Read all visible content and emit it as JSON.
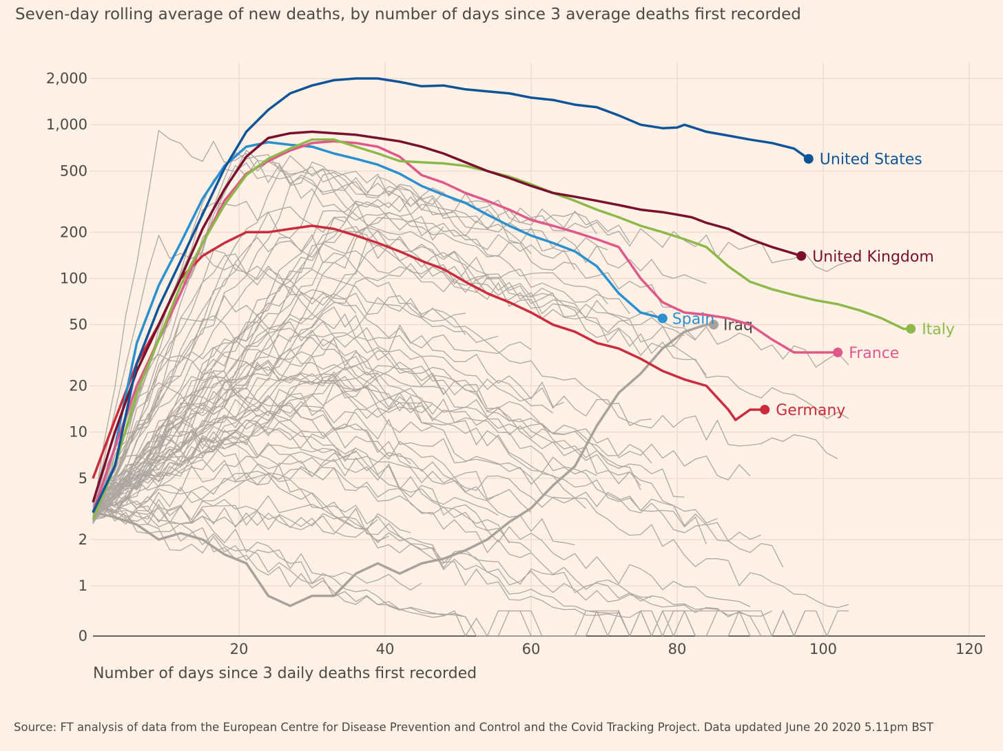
{
  "chart_data": {
    "type": "line",
    "title": "Seven-day rolling average of new deaths, by number of days since 3 average deaths first recorded",
    "xlabel": "Number of days since 3 daily deaths first recorded",
    "ylabel": "",
    "source": "Source: FT analysis of data from the European Centre for Disease Prevention and Control and the Covid Tracking Project. Data updated June 20 2020 5.11pm BST",
    "x_ticks": [
      "20",
      "40",
      "60",
      "80",
      "100",
      "120"
    ],
    "y_ticks": [
      "0",
      "1",
      "2",
      "5",
      "10",
      "20",
      "50",
      "100",
      "200",
      "500",
      "1,000",
      "2,000"
    ],
    "y_scale": "log (symlog near zero)",
    "xlim": [
      0,
      122
    ],
    "ylim": [
      0,
      2500
    ],
    "grid": true,
    "colors": {
      "background": "#fff1e5",
      "grid": "#e5d9cf",
      "other_countries": "#aaa39d",
      "United States": "#0f5499",
      "United Kingdom": "#7a0f2e",
      "Italy": "#8db94a",
      "France": "#e0588a",
      "Spain": "#2a90cf",
      "Germany": "#cc2b3d",
      "Iraq": "#a8a29c"
    },
    "series": [
      {
        "name": "United States",
        "x": [
          0,
          3,
          6,
          9,
          12,
          15,
          18,
          21,
          24,
          27,
          30,
          33,
          36,
          39,
          42,
          45,
          48,
          51,
          54,
          57,
          60,
          63,
          66,
          69,
          72,
          75,
          78,
          80,
          81,
          84,
          87,
          90,
          93,
          96,
          98
        ],
        "values": [
          3,
          6,
          28,
          65,
          130,
          260,
          520,
          900,
          1250,
          1600,
          1800,
          1950,
          2000,
          2000,
          1900,
          1780,
          1800,
          1700,
          1650,
          1600,
          1500,
          1450,
          1350,
          1300,
          1150,
          1000,
          950,
          960,
          1000,
          900,
          850,
          800,
          760,
          700,
          600
        ]
      },
      {
        "name": "United Kingdom",
        "x": [
          0,
          3,
          6,
          9,
          12,
          15,
          18,
          21,
          24,
          27,
          30,
          33,
          36,
          39,
          42,
          45,
          48,
          51,
          54,
          57,
          60,
          63,
          66,
          69,
          72,
          75,
          78,
          80,
          82,
          84,
          87,
          90,
          93,
          96,
          97
        ],
        "values": [
          3.5,
          10,
          25,
          50,
          100,
          210,
          380,
          620,
          820,
          880,
          900,
          880,
          860,
          820,
          780,
          720,
          650,
          570,
          500,
          450,
          400,
          360,
          340,
          320,
          300,
          280,
          270,
          260,
          250,
          230,
          210,
          180,
          160,
          145,
          140
        ]
      },
      {
        "name": "Italy",
        "x": [
          0,
          3,
          6,
          9,
          12,
          15,
          18,
          21,
          24,
          27,
          30,
          33,
          36,
          39,
          42,
          45,
          48,
          51,
          54,
          57,
          60,
          63,
          66,
          69,
          72,
          75,
          78,
          81,
          84,
          87,
          90,
          93,
          96,
          99,
          102,
          105,
          108,
          111,
          112
        ],
        "values": [
          2.7,
          6,
          18,
          40,
          90,
          170,
          300,
          470,
          600,
          700,
          800,
          800,
          720,
          650,
          580,
          570,
          560,
          540,
          500,
          460,
          410,
          360,
          320,
          280,
          250,
          220,
          200,
          180,
          160,
          120,
          95,
          85,
          78,
          72,
          68,
          62,
          55,
          47,
          47
        ]
      },
      {
        "name": "France",
        "x": [
          0,
          3,
          6,
          9,
          12,
          15,
          18,
          21,
          24,
          27,
          30,
          33,
          36,
          39,
          42,
          45,
          48,
          51,
          54,
          57,
          60,
          63,
          66,
          69,
          72,
          75,
          78,
          81,
          84,
          87,
          90,
          93,
          96,
          99,
          102
        ],
        "values": [
          3,
          8,
          20,
          40,
          80,
          170,
          320,
          480,
          580,
          680,
          760,
          780,
          760,
          720,
          620,
          470,
          420,
          360,
          320,
          280,
          240,
          220,
          200,
          180,
          160,
          100,
          70,
          60,
          58,
          55,
          50,
          40,
          33,
          33,
          33
        ]
      },
      {
        "name": "Spain",
        "x": [
          0,
          3,
          6,
          9,
          12,
          15,
          18,
          21,
          24,
          27,
          30,
          33,
          36,
          39,
          42,
          45,
          48,
          51,
          54,
          57,
          60,
          63,
          66,
          69,
          72,
          75,
          78
        ],
        "values": [
          3,
          8,
          38,
          90,
          170,
          330,
          540,
          720,
          770,
          740,
          720,
          650,
          600,
          550,
          480,
          400,
          350,
          310,
          260,
          220,
          190,
          170,
          150,
          120,
          80,
          60,
          55
        ]
      },
      {
        "name": "Germany",
        "x": [
          0,
          3,
          6,
          9,
          12,
          15,
          18,
          21,
          24,
          27,
          30,
          33,
          36,
          39,
          42,
          45,
          48,
          51,
          54,
          57,
          60,
          63,
          66,
          69,
          72,
          75,
          78,
          81,
          84,
          87,
          88,
          90,
          92
        ],
        "values": [
          5,
          12,
          28,
          50,
          100,
          140,
          170,
          200,
          200,
          210,
          220,
          210,
          190,
          170,
          150,
          130,
          115,
          95,
          80,
          70,
          60,
          50,
          45,
          38,
          35,
          30,
          25,
          22,
          20,
          14,
          12,
          14,
          14
        ]
      },
      {
        "name": "Iraq",
        "x": [
          0,
          3,
          6,
          9,
          12,
          15,
          18,
          21,
          24,
          27,
          30,
          33,
          36,
          39,
          42,
          45,
          48,
          51,
          54,
          57,
          60,
          63,
          66,
          69,
          72,
          75,
          78,
          81,
          84,
          85
        ],
        "values": [
          3,
          2.8,
          2.5,
          2,
          2.2,
          2,
          1.6,
          1.4,
          0.8,
          0.6,
          0.8,
          0.8,
          1.2,
          1.4,
          1.2,
          1.4,
          1.5,
          1.7,
          2,
          2.6,
          3.2,
          4.5,
          6,
          11,
          18,
          24,
          35,
          45,
          50,
          50
        ]
      }
    ],
    "labels": [
      {
        "name": "United States",
        "text": "United States"
      },
      {
        "name": "United Kingdom",
        "text": "United Kingdom"
      },
      {
        "name": "Italy",
        "text": "Italy"
      },
      {
        "name": "France",
        "text": "France"
      },
      {
        "name": "Spain",
        "text": "Spain"
      },
      {
        "name": "Germany",
        "text": "Germany"
      },
      {
        "name": "Iraq",
        "text": "Iraq"
      }
    ]
  }
}
